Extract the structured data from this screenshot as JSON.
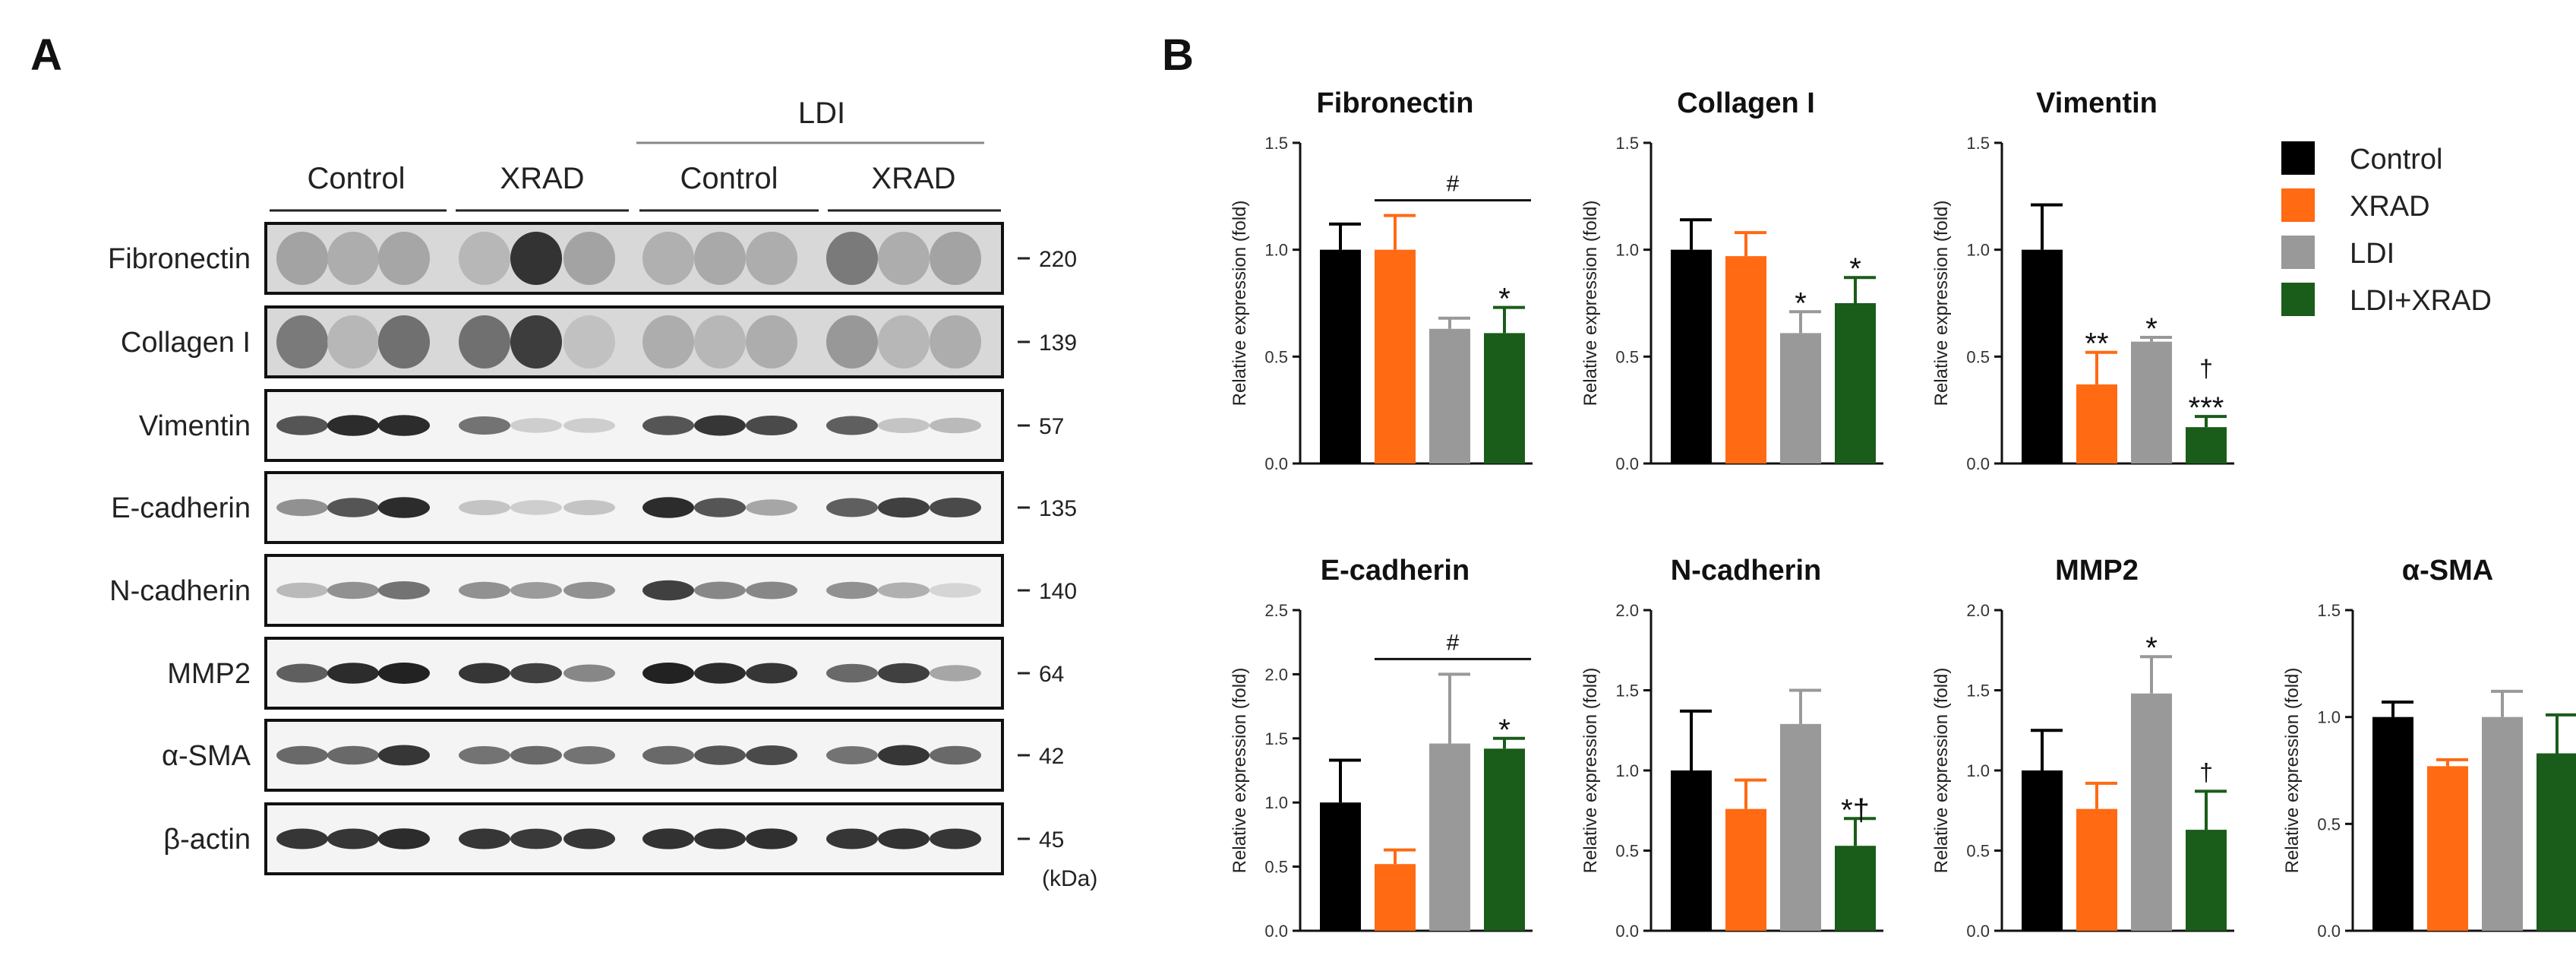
{
  "panel_labels": {
    "a": "A",
    "b": "B"
  },
  "blot": {
    "group_header": "LDI",
    "group_labels": [
      "Control",
      "XRAD",
      "Control",
      "XRAD"
    ],
    "unit_label": "(kDa)",
    "rows": [
      {
        "label": "Fibronectin",
        "kda": "220"
      },
      {
        "label": "Collagen I",
        "kda": "139"
      },
      {
        "label": "Vimentin",
        "kda": "57"
      },
      {
        "label": "E-cadherin",
        "kda": "135"
      },
      {
        "label": "N-cadherin",
        "kda": "140"
      },
      {
        "label": "MMP2",
        "kda": "64"
      },
      {
        "label": "α-SMA",
        "kda": "42"
      },
      {
        "label": "β-actin",
        "kda": "45"
      }
    ]
  },
  "legend": [
    {
      "label": "Control",
      "color": "#000000"
    },
    {
      "label": "XRAD",
      "color": "#ff6a13"
    },
    {
      "label": "LDI",
      "color": "#999999"
    },
    {
      "label": "LDI+XRAD",
      "color": "#1a5c1a"
    }
  ],
  "chart_data": [
    {
      "type": "bar",
      "title": "Fibronectin",
      "ylabel": "Relative expression (fold)",
      "categories": [
        "Control",
        "XRAD",
        "LDI",
        "LDI+XRAD"
      ],
      "values": [
        1.0,
        1.0,
        0.63,
        0.61
      ],
      "errors": [
        0.12,
        0.16,
        0.05,
        0.12
      ],
      "ylim": [
        0,
        1.5
      ],
      "yticks": [
        "0.0",
        "0.5",
        "1.0",
        "1.5"
      ],
      "annotations": [
        "",
        "",
        "",
        "*"
      ],
      "bracket": {
        "label": "#",
        "from": 1,
        "to": 3
      }
    },
    {
      "type": "bar",
      "title": "Collagen I",
      "ylabel": "Relative expression (fold)",
      "categories": [
        "Control",
        "XRAD",
        "LDI",
        "LDI+XRAD"
      ],
      "values": [
        1.0,
        0.97,
        0.61,
        0.75
      ],
      "errors": [
        0.14,
        0.11,
        0.1,
        0.12
      ],
      "ylim": [
        0,
        1.5
      ],
      "yticks": [
        "0.0",
        "0.5",
        "1.0",
        "1.5"
      ],
      "annotations": [
        "",
        "",
        "*",
        "*"
      ]
    },
    {
      "type": "bar",
      "title": "Vimentin",
      "ylabel": "Relative expression (fold)",
      "categories": [
        "Control",
        "XRAD",
        "LDI",
        "LDI+XRAD"
      ],
      "values": [
        1.0,
        0.37,
        0.57,
        0.17
      ],
      "errors": [
        0.21,
        0.15,
        0.02,
        0.05
      ],
      "ylim": [
        0,
        1.5
      ],
      "yticks": [
        "0.0",
        "0.5",
        "1.0",
        "1.5"
      ],
      "annotations": [
        "",
        "**",
        "*",
        "†\n***"
      ]
    },
    {
      "type": "bar",
      "title": "E-cadherin",
      "ylabel": "Relative expression (fold)",
      "categories": [
        "Control",
        "XRAD",
        "LDI",
        "LDI+XRAD"
      ],
      "values": [
        1.0,
        0.52,
        1.46,
        1.42
      ],
      "errors": [
        0.33,
        0.11,
        0.54,
        0.08
      ],
      "ylim": [
        0,
        2.5
      ],
      "yticks": [
        "0.0",
        "0.5",
        "1.0",
        "1.5",
        "2.0",
        "2.5"
      ],
      "annotations": [
        "",
        "",
        "",
        "*"
      ],
      "bracket": {
        "label": "#",
        "from": 1,
        "to": 3
      }
    },
    {
      "type": "bar",
      "title": "N-cadherin",
      "ylabel": "Relative expression (fold)",
      "categories": [
        "Control",
        "XRAD",
        "LDI",
        "LDI+XRAD"
      ],
      "values": [
        1.0,
        0.76,
        1.29,
        0.53
      ],
      "errors": [
        0.37,
        0.18,
        0.21,
        0.17
      ],
      "ylim": [
        0,
        2.0
      ],
      "yticks": [
        "0.0",
        "0.5",
        "1.0",
        "1.5",
        "2.0"
      ],
      "annotations": [
        "",
        "",
        "",
        "*†"
      ]
    },
    {
      "type": "bar",
      "title": "MMP2",
      "ylabel": "Relative expression (fold)",
      "categories": [
        "Control",
        "XRAD",
        "LDI",
        "LDI+XRAD"
      ],
      "values": [
        1.0,
        0.76,
        1.48,
        0.63
      ],
      "errors": [
        0.25,
        0.16,
        0.23,
        0.24
      ],
      "ylim": [
        0,
        2.0
      ],
      "yticks": [
        "0.0",
        "0.5",
        "1.0",
        "1.5",
        "2.0"
      ],
      "annotations": [
        "",
        "",
        "*",
        "†"
      ]
    },
    {
      "type": "bar",
      "title": "α-SMA",
      "ylabel": "Relative expression (fold)",
      "categories": [
        "Control",
        "XRAD",
        "LDI",
        "LDI+XRAD"
      ],
      "values": [
        1.0,
        0.77,
        1.0,
        0.83
      ],
      "errors": [
        0.07,
        0.03,
        0.12,
        0.18
      ],
      "ylim": [
        0,
        1.5
      ],
      "yticks": [
        "0.0",
        "0.5",
        "1.0",
        "1.5"
      ],
      "annotations": [
        "",
        "",
        "",
        ""
      ]
    }
  ]
}
